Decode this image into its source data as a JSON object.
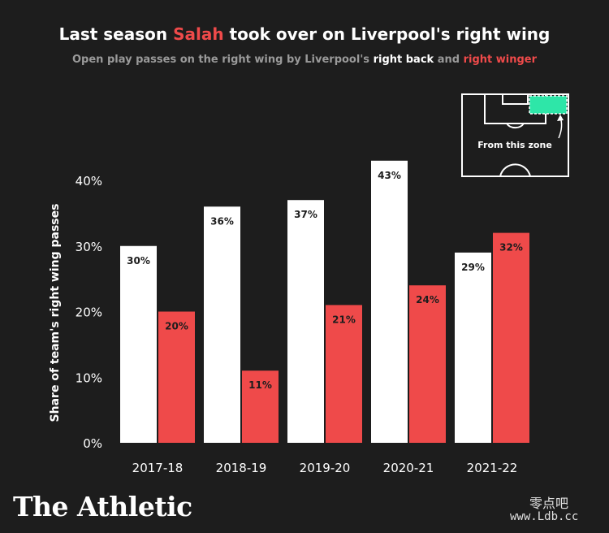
{
  "header": {
    "title_pre": "Last season ",
    "title_highlight": "Salah",
    "title_post": " took over on Liverpool's right wing",
    "subtitle_pre": "Open play passes on the right wing by Liverpool's ",
    "subtitle_hl1": "right back",
    "subtitle_mid": " and ",
    "subtitle_hl2": "right winger"
  },
  "inset": {
    "label": "From this zone"
  },
  "brand": {
    "name": "The Athletic"
  },
  "watermark": {
    "cn": "零点吧",
    "url": "www.Ldb.cc"
  },
  "colors": {
    "background": "#1d1d1d",
    "right_back": "#ffffff",
    "right_winger": "#ef4a4a",
    "zone": "#2ee6a8"
  },
  "chart_data": {
    "type": "bar",
    "ylabel": "Share of team's right wing passes",
    "xlabel": "",
    "ylim": [
      0,
      40
    ],
    "yticks": [
      0,
      10,
      20,
      30,
      40
    ],
    "ytick_labels": [
      "0%",
      "10%",
      "20%",
      "30%",
      "40%"
    ],
    "categories": [
      "2017-18",
      "2018-19",
      "2019-20",
      "2020-21",
      "2021-22"
    ],
    "series": [
      {
        "name": "right back",
        "color": "#ffffff",
        "values": [
          30,
          36,
          37,
          43,
          29
        ],
        "labels": [
          "30%",
          "36%",
          "37%",
          "43%",
          "29%"
        ]
      },
      {
        "name": "right winger",
        "color": "#ef4a4a",
        "values": [
          20,
          11,
          21,
          24,
          32
        ],
        "labels": [
          "20%",
          "11%",
          "21%",
          "24%",
          "32%"
        ]
      }
    ],
    "grid": false
  }
}
